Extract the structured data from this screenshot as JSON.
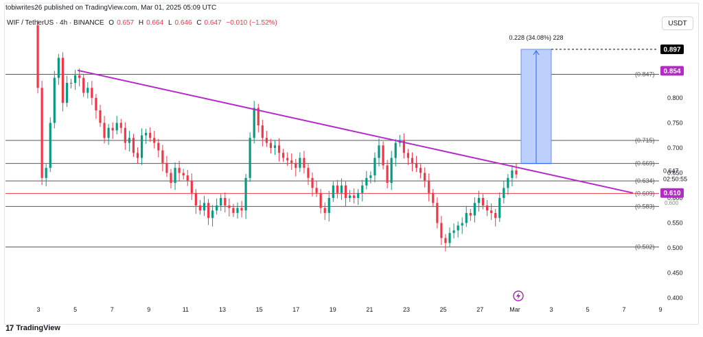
{
  "header": {
    "published": "tobiwrites26 published on TradingView.com, Mar 01, 2025 05:09 UTC",
    "symbol": "WIF / TetherUS · 4h · BINANCE",
    "o_label": "O",
    "o": "0.657",
    "h_label": "H",
    "h": "0.664",
    "l_label": "L",
    "l": "0.646",
    "c_label": "C",
    "c": "0.647",
    "change": "−0.010 (−1.52%)",
    "currency_button": "USDT"
  },
  "footer": {
    "brand": "TradingView",
    "logo_icon": "tradingview-logo-icon"
  },
  "chart_data": {
    "type": "candlestick",
    "x_tick_labels": [
      "3",
      "5",
      "7",
      "9",
      "11",
      "13",
      "15",
      "17",
      "19",
      "21",
      "23",
      "25",
      "27",
      "Mar",
      "3",
      "5",
      "7",
      "9"
    ],
    "y_tick_labels": [
      "0.400",
      "0.450",
      "0.500",
      "0.550",
      "0.600",
      "0.650",
      "0.700",
      "0.750",
      "0.800",
      "0.850"
    ],
    "ylim": [
      0.386,
      0.945
    ],
    "horizontal_levels": [
      {
        "label": "(0.847)",
        "value": 0.847
      },
      {
        "label": "(0.715)",
        "value": 0.715
      },
      {
        "label": "(0.669)",
        "value": 0.669
      },
      {
        "label": "(0.634)",
        "value": 0.634
      },
      {
        "label": "(0.609)",
        "value": 0.609,
        "color": "#f23645"
      },
      {
        "label": "(0.583)",
        "value": 0.583
      },
      {
        "label": "(0.502)",
        "value": 0.502
      }
    ],
    "trendline": {
      "start_day": 5.2,
      "start_value": 0.855,
      "end_day": 7.7,
      "end_value": 0.61,
      "color": "#b32ac7"
    },
    "target_box": {
      "start_day": 1.8,
      "end_day": 2.8,
      "bottom": 0.669,
      "top": 0.897,
      "label": "0.228 (34.08%) 228"
    },
    "price_badges": [
      {
        "value": "0.897",
        "color": "#000000"
      },
      {
        "value": "0.854",
        "color": "#b32ac7"
      },
      {
        "value": "0.610",
        "color": "#b32ac7"
      }
    ],
    "current_price": {
      "value": "0.647",
      "countdown": "02:50:55"
    },
    "partial_label": "0.600",
    "event_icon": "lightning-icon",
    "colors": {
      "up": "#089981",
      "down": "#f23645",
      "grid_line": "#555555",
      "level_red": "#f23645"
    },
    "closes": [
      0.945,
      0.82,
      0.64,
      0.66,
      0.75,
      0.84,
      0.88,
      0.79,
      0.83,
      0.83,
      0.845,
      0.84,
      0.81,
      0.82,
      0.8,
      0.775,
      0.75,
      0.72,
      0.74,
      0.735,
      0.75,
      0.74,
      0.71,
      0.72,
      0.69,
      0.68,
      0.725,
      0.73,
      0.72,
      0.71,
      0.695,
      0.67,
      0.65,
      0.63,
      0.66,
      0.65,
      0.645,
      0.635,
      0.61,
      0.585,
      0.575,
      0.59,
      0.56,
      0.575,
      0.585,
      0.6,
      0.585,
      0.58,
      0.57,
      0.58,
      0.575,
      0.64,
      0.72,
      0.78,
      0.745,
      0.72,
      0.71,
      0.7,
      0.705,
      0.69,
      0.68,
      0.675,
      0.67,
      0.66,
      0.68,
      0.66,
      0.64,
      0.62,
      0.61,
      0.58,
      0.57,
      0.6,
      0.625,
      0.61,
      0.625,
      0.6,
      0.605,
      0.6,
      0.61,
      0.625,
      0.64,
      0.645,
      0.68,
      0.705,
      0.665,
      0.63,
      0.68,
      0.71,
      0.715,
      0.69,
      0.68,
      0.67,
      0.66,
      0.65,
      0.635,
      0.61,
      0.59,
      0.55,
      0.52,
      0.51,
      0.53,
      0.535,
      0.545,
      0.55,
      0.57,
      0.565,
      0.59,
      0.6,
      0.585,
      0.575,
      0.57,
      0.56,
      0.6,
      0.62,
      0.64,
      0.655,
      0.647
    ]
  }
}
